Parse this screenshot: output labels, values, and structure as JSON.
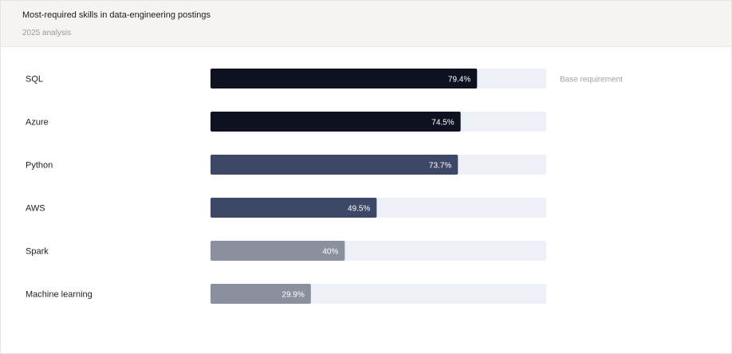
{
  "chart_data": {
    "type": "bar",
    "orientation": "horizontal",
    "title": "Most-required skills in data-engineering postings",
    "subtitle": "2025 analysis",
    "categories": [
      "SQL",
      "Azure",
      "Python",
      "AWS",
      "Spark",
      "Machine learning"
    ],
    "values": [
      79.4,
      74.5,
      73.7,
      49.5,
      40,
      29.9
    ],
    "value_labels": [
      "79.4%",
      "74.5%",
      "73.7%",
      "49.5%",
      "40%",
      "29.9%"
    ],
    "xlim": [
      0,
      100
    ],
    "grid": false,
    "legend": "none",
    "annotations": [
      {
        "category": "SQL",
        "text": "Base requirement"
      }
    ],
    "colors": {
      "track": "#eef0f7",
      "bars": [
        "#0d1120",
        "#0d1120",
        "#3d4866",
        "#3d4866",
        "#8a909e",
        "#8a909e"
      ]
    }
  }
}
